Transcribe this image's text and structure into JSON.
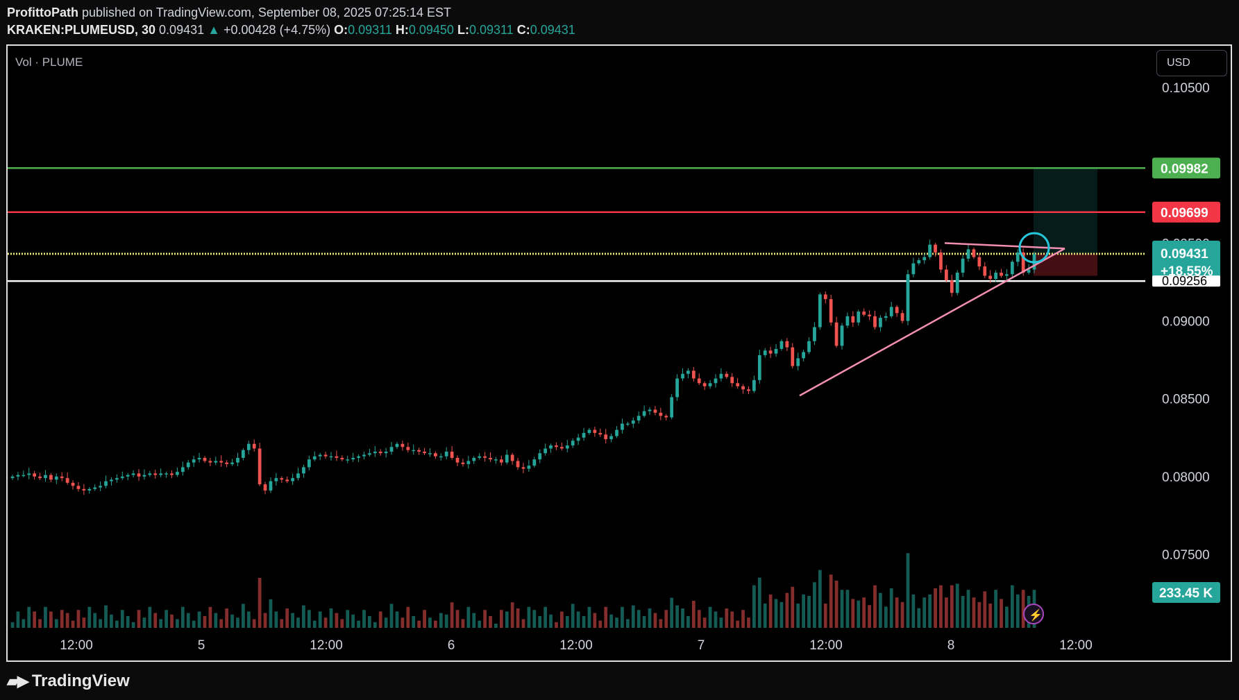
{
  "header": {
    "author": "ProfittoPath",
    "published": "published on TradingView.com, September 08, 2025 07:25:14 EST",
    "symbol": "KRAKEN:PLUMEUSD, 30",
    "last": "0.09431",
    "change_arrow": "▲",
    "change": "+0.00428 (+4.75%)",
    "o_label": "O:",
    "o": "0.09311",
    "h_label": "H:",
    "h": "0.09450",
    "l_label": "L:",
    "l": "0.09311",
    "c_label": "C:",
    "c": "0.09431"
  },
  "vol_title": "Vol · PLUME",
  "currency": "USD",
  "footer": {
    "logo_text": "TradingView",
    "logo_icon": "tradingview-logo-icon"
  },
  "colors": {
    "up": "#26a69a",
    "down": "#ef5350",
    "green_level": "#4caf50",
    "red_level": "#f23645",
    "yellow_level": "#e8e07a",
    "white_level": "#ffffff",
    "trendline": "#f48fb1",
    "circle": "#26c6da"
  },
  "chart_data": {
    "type": "candlestick",
    "symbol": "KRAKEN:PLUMEUSD",
    "interval": "30",
    "y_axis": {
      "range": [
        0.0705,
        0.1075
      ],
      "ticks": [
        "0.10500",
        "0.09500",
        "0.09000",
        "0.08500",
        "0.08000",
        "0.07500"
      ],
      "position": "right"
    },
    "x_axis": {
      "tick_labels": [
        "12:00",
        "5",
        "12:00",
        "6",
        "12:00",
        "7",
        "12:00",
        "8",
        "12:00"
      ]
    },
    "horizontal_levels": [
      {
        "price": 0.09982,
        "label": "0.09982",
        "color": "#4caf50"
      },
      {
        "price": 0.09699,
        "label": "0.09699",
        "color": "#f23645"
      },
      {
        "price": 0.09431,
        "label": "0.09431",
        "sub_label": "+18.55%",
        "color": "#e8e07a",
        "style": "dotted"
      },
      {
        "price": 0.09256,
        "label": "0.09256",
        "color": "#ffffff"
      }
    ],
    "volume_label": "233.45 K",
    "close_series": [
      0.08,
      0.0801,
      0.0801,
      0.0802,
      0.08,
      0.0799,
      0.0801,
      0.0798,
      0.08,
      0.0799,
      0.0796,
      0.0794,
      0.0792,
      0.0791,
      0.0792,
      0.0793,
      0.0794,
      0.0797,
      0.0798,
      0.0799,
      0.08,
      0.0801,
      0.0802,
      0.08,
      0.0801,
      0.0802,
      0.0801,
      0.0802,
      0.0802,
      0.0801,
      0.0803,
      0.0806,
      0.0809,
      0.0811,
      0.0812,
      0.081,
      0.0809,
      0.081,
      0.0809,
      0.0808,
      0.0809,
      0.0812,
      0.0817,
      0.0821,
      0.0818,
      0.0795,
      0.0791,
      0.0797,
      0.0799,
      0.0798,
      0.0797,
      0.0799,
      0.0802,
      0.0806,
      0.0811,
      0.0813,
      0.0814,
      0.0813,
      0.0813,
      0.0812,
      0.0811,
      0.0811,
      0.0812,
      0.0813,
      0.0814,
      0.0815,
      0.0816,
      0.0815,
      0.0816,
      0.0819,
      0.0821,
      0.0819,
      0.0817,
      0.0817,
      0.0816,
      0.0815,
      0.0815,
      0.0813,
      0.0813,
      0.0816,
      0.0812,
      0.0809,
      0.0808,
      0.081,
      0.0812,
      0.0813,
      0.0812,
      0.0811,
      0.0811,
      0.0809,
      0.0814,
      0.081,
      0.0806,
      0.0805,
      0.0807,
      0.0811,
      0.0815,
      0.0818,
      0.082,
      0.0819,
      0.0818,
      0.082,
      0.0823,
      0.0825,
      0.0828,
      0.083,
      0.0828,
      0.0827,
      0.0824,
      0.0826,
      0.083,
      0.0834,
      0.0834,
      0.0836,
      0.0839,
      0.0842,
      0.0843,
      0.0841,
      0.0839,
      0.0838,
      0.0851,
      0.0863,
      0.0866,
      0.0868,
      0.0863,
      0.086,
      0.0858,
      0.086,
      0.0863,
      0.0866,
      0.0864,
      0.086,
      0.0858,
      0.0856,
      0.0855,
      0.0862,
      0.0878,
      0.0881,
      0.0879,
      0.0882,
      0.0887,
      0.0883,
      0.0871,
      0.0876,
      0.088,
      0.0887,
      0.0896,
      0.0917,
      0.0914,
      0.0899,
      0.0884,
      0.0897,
      0.0903,
      0.0899,
      0.0906,
      0.0904,
      0.0903,
      0.0896,
      0.0902,
      0.0903,
      0.0909,
      0.0905,
      0.09,
      0.093,
      0.0937,
      0.0939,
      0.0941,
      0.0949,
      0.0944,
      0.0933,
      0.0926,
      0.0918,
      0.0931,
      0.094,
      0.0946,
      0.0941,
      0.0935,
      0.0929,
      0.0927,
      0.0931,
      0.0929,
      0.093,
      0.0938,
      0.0944,
      0.0931,
      0.0933,
      0.0943
    ]
  }
}
